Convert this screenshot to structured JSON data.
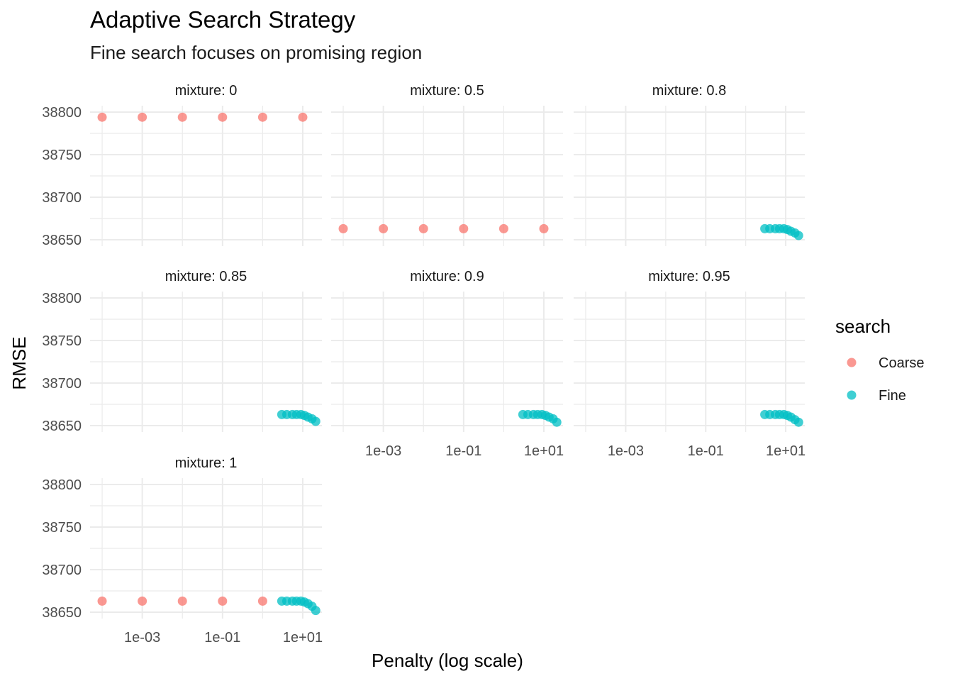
{
  "chart_data": {
    "type": "scatter",
    "title": "Adaptive Search Strategy",
    "subtitle": "Fine search focuses on promising region",
    "xlabel": "Penalty (log scale)",
    "ylabel": "RMSE",
    "x_scale": "log10",
    "xlim": [
      5e-05,
      30
    ],
    "ylim": [
      38650,
      38800
    ],
    "x_ticks": [
      0.001,
      0.1,
      10
    ],
    "x_tick_labels": [
      "1e-03",
      "1e-01",
      "1e+01"
    ],
    "y_ticks": [
      38650,
      38700,
      38750,
      38800
    ],
    "y_tick_labels": [
      "38650",
      "38700",
      "38750",
      "38800"
    ],
    "grid": true,
    "legend": {
      "title": "search",
      "position": "right",
      "entries": [
        {
          "label": "Coarse",
          "color": "#F8766D"
        },
        {
          "label": "Fine",
          "color": "#00BFC4"
        }
      ]
    },
    "panels": [
      {
        "strip": "mixture: 0",
        "series": [
          {
            "name": "Coarse",
            "x": [
              0.0001,
              0.001,
              0.01,
              0.1,
              1,
              10
            ],
            "y": [
              38794,
              38794,
              38794,
              38794,
              38794,
              38794
            ]
          }
        ]
      },
      {
        "strip": "mixture: 0.5",
        "series": [
          {
            "name": "Coarse",
            "x": [
              0.0001,
              0.001,
              0.01,
              0.1,
              1,
              10
            ],
            "y": [
              38663,
              38663,
              38663,
              38663,
              38663,
              38663
            ]
          }
        ]
      },
      {
        "strip": "mixture: 0.8",
        "series": [
          {
            "name": "Fine",
            "x": [
              3,
              4,
              5.5,
              7,
              9,
              11,
              13.5,
              17,
              21
            ],
            "y": [
              38663,
              38663,
              38663,
              38663,
              38663,
              38662,
              38660,
              38658,
              38655
            ]
          }
        ]
      },
      {
        "strip": "mixture: 0.85",
        "series": [
          {
            "name": "Fine",
            "x": [
              3,
              4,
              5.5,
              7,
              9,
              11,
              13.5,
              17,
              21
            ],
            "y": [
              38663,
              38663,
              38663,
              38663,
              38663,
              38662,
              38660,
              38658,
              38655
            ]
          }
        ]
      },
      {
        "strip": "mixture: 0.9",
        "series": [
          {
            "name": "Fine",
            "x": [
              3,
              4,
              5.5,
              7,
              9,
              11,
              13.5,
              17,
              21
            ],
            "y": [
              38663,
              38663,
              38663,
              38663,
              38663,
              38662,
              38660,
              38658,
              38654
            ]
          }
        ]
      },
      {
        "strip": "mixture: 0.95",
        "series": [
          {
            "name": "Fine",
            "x": [
              3,
              4,
              5.5,
              7,
              9,
              11,
              13.5,
              17,
              21
            ],
            "y": [
              38663,
              38663,
              38663,
              38663,
              38663,
              38662,
              38660,
              38657,
              38654
            ]
          }
        ]
      },
      {
        "strip": "mixture: 1",
        "series": [
          {
            "name": "Coarse",
            "x": [
              0.0001,
              0.001,
              0.01,
              0.1,
              1
            ],
            "y": [
              38663,
              38663,
              38663,
              38663,
              38663
            ]
          },
          {
            "name": "Fine",
            "x": [
              3,
              4,
              5.5,
              7,
              9,
              11,
              13.5,
              17,
              21
            ],
            "y": [
              38663,
              38663,
              38663,
              38663,
              38663,
              38662,
              38660,
              38657,
              38652
            ]
          }
        ]
      }
    ]
  }
}
